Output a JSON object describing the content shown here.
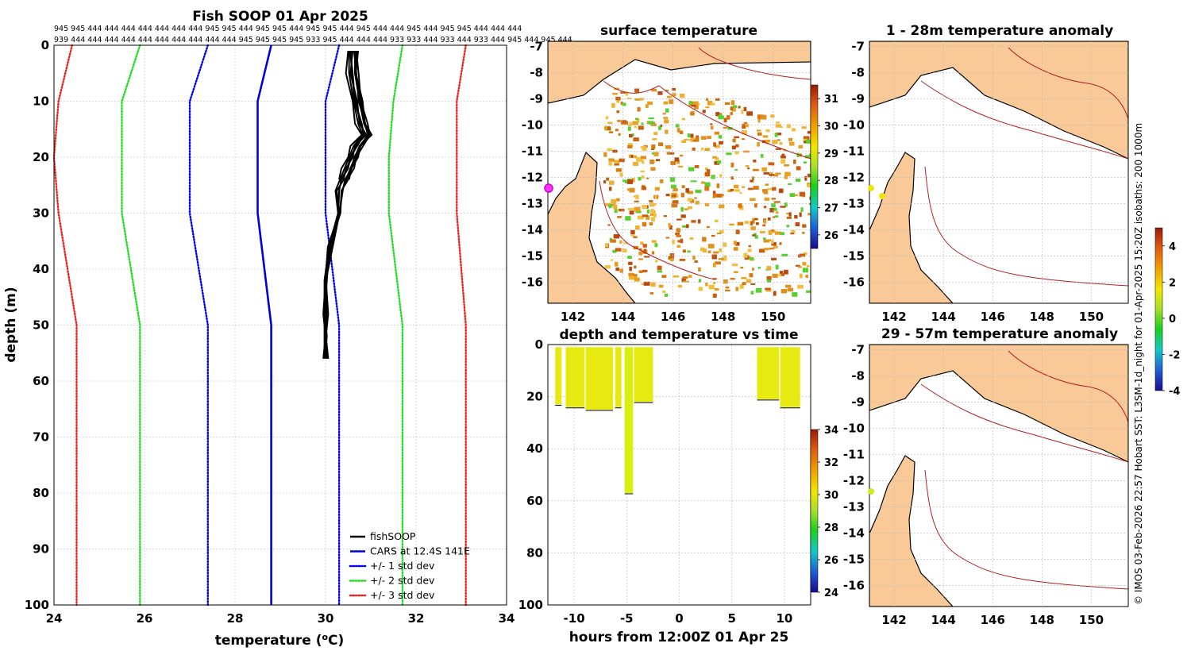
{
  "chart_data": [
    {
      "id": "profile",
      "type": "line",
      "title": "Fish SOOP 01 Apr 2025",
      "xlabel": "temperature (°C)",
      "ylabel": "depth (m)",
      "xlim": [
        24,
        34
      ],
      "ylim": [
        0,
        100
      ],
      "xticks": [
        "24",
        "26",
        "28",
        "30",
        "32",
        "34"
      ],
      "yticks": [
        "0",
        "10",
        "20",
        "30",
        "40",
        "50",
        "60",
        "70",
        "80",
        "90",
        "100"
      ],
      "depth_levels": [
        0,
        10,
        20,
        30,
        50,
        100
      ],
      "top_ids_row1": "945  945  444  444  444  444  444  444  444  945  945  444  945  945  444  945  945  444  945  444  444  945  444  945  945  444  444  444",
      "top_ids_row2": "939  444  444  444  444  444  444  444  444  444  444  945  945  945  945  933  945  444  444  444  933  933  444  933  444  933  444  945  444  945  444",
      "series": [
        {
          "name": "CARS at 12.4S 141E",
          "color": "#0000dd",
          "style": "solid",
          "values": [
            28.8,
            28.5,
            28.5,
            28.5,
            28.8,
            28.8
          ]
        },
        {
          "name": "-1 std",
          "color": "#0000ee",
          "style": "dotted",
          "values": [
            27.4,
            27.0,
            27.0,
            27.0,
            27.4,
            27.4
          ]
        },
        {
          "name": "+1 std",
          "color": "#0000ee",
          "style": "dotted",
          "values": [
            30.3,
            30.0,
            30.0,
            30.0,
            30.3,
            30.3
          ]
        },
        {
          "name": "-2 std",
          "color": "#22dd22",
          "style": "dotted",
          "values": [
            25.9,
            25.5,
            25.5,
            25.5,
            25.9,
            25.9
          ]
        },
        {
          "name": "+2 std",
          "color": "#22dd22",
          "style": "dotted",
          "values": [
            31.7,
            31.5,
            31.4,
            31.4,
            31.7,
            31.7
          ]
        },
        {
          "name": "-3 std",
          "color": "#ee2222",
          "style": "dotted",
          "values": [
            24.4,
            24.1,
            24.0,
            24.1,
            24.5,
            24.5
          ]
        },
        {
          "name": "+3 std",
          "color": "#ee2222",
          "style": "dotted",
          "values": [
            33.1,
            32.9,
            32.9,
            32.9,
            33.1,
            33.1
          ]
        }
      ],
      "fishSOOP_profile": {
        "depth": [
          1,
          5,
          10,
          14,
          16,
          18,
          20,
          22,
          24,
          26,
          30,
          36,
          42,
          48,
          52,
          56
        ],
        "temp": [
          30.6,
          30.6,
          30.7,
          30.8,
          30.9,
          30.7,
          30.6,
          30.5,
          30.4,
          30.3,
          30.3,
          30.1,
          30.0,
          30.0,
          30.0,
          30.0
        ]
      },
      "legend": [
        {
          "label": "fishSOOP",
          "color": "#000000",
          "style": "solid"
        },
        {
          "label": "CARS at 12.4S 141E",
          "color": "#0000dd",
          "style": "solid"
        },
        {
          "label": "+/- 1 std dev",
          "color": "#0000ee",
          "style": "dotted"
        },
        {
          "label": "+/- 2 std dev",
          "color": "#22dd22",
          "style": "dotted"
        },
        {
          "label": "+/- 3 std dev",
          "color": "#ee2222",
          "style": "dotted"
        }
      ]
    },
    {
      "id": "sst_map",
      "type": "heatmap",
      "title": "surface temperature",
      "lon_ticks": [
        "142",
        "144",
        "146",
        "148",
        "150"
      ],
      "lat_ticks": [
        "-7",
        "-8",
        "-9",
        "-10",
        "-11",
        "-12",
        "-13",
        "-14",
        "-15",
        "-16"
      ],
      "lon_range": [
        141,
        151.5
      ],
      "lat_range": [
        -16.8,
        -6.8
      ],
      "colorbar_ticks": [
        "31",
        "30",
        "29",
        "28",
        "27",
        "26"
      ],
      "colorbar_range": [
        25.5,
        31.5
      ]
    },
    {
      "id": "anom_map_1",
      "type": "heatmap",
      "title": "1 - 28m temperature anomaly",
      "lon_ticks": [
        "142",
        "144",
        "146",
        "148",
        "150"
      ],
      "lat_ticks": [
        "-7",
        "-8",
        "-9",
        "-10",
        "-11",
        "-12",
        "-13",
        "-14",
        "-15",
        "-16"
      ]
    },
    {
      "id": "anom_map_2",
      "type": "heatmap",
      "title": "29 - 57m temperature anomaly",
      "lon_ticks": [
        "142",
        "144",
        "146",
        "148",
        "150"
      ],
      "lat_ticks": [
        "-7",
        "-8",
        "-9",
        "-10",
        "-11",
        "-12",
        "-13",
        "-14",
        "-15",
        "-16"
      ]
    },
    {
      "id": "anom_colorbar",
      "type": "heatmap",
      "colorbar_ticks": [
        "4",
        "2",
        "0",
        "-2",
        "-4"
      ],
      "colorbar_range": [
        -4,
        5
      ]
    },
    {
      "id": "depth_time",
      "type": "scatter",
      "title": "depth and temperature vs time",
      "xlabel": "hours from 12:00Z 01 Apr 25",
      "xlim": [
        -12.5,
        12.5
      ],
      "ylim": [
        0,
        100
      ],
      "xticks": [
        "-10",
        "-5",
        "0",
        "5",
        "10"
      ],
      "yticks": [
        "0",
        "20",
        "40",
        "60",
        "80",
        "100"
      ],
      "colorbar_ticks": [
        "34",
        "32",
        "30",
        "28",
        "26",
        "24"
      ],
      "colorbar_range": [
        24,
        34
      ],
      "casts": [
        {
          "t_start": -11.8,
          "t_end": -11.2,
          "max_depth": 23
        },
        {
          "t_start": -10.8,
          "t_end": -9.0,
          "max_depth": 24
        },
        {
          "t_start": -8.9,
          "t_end": -6.3,
          "max_depth": 25
        },
        {
          "t_start": -6.1,
          "t_end": -5.5,
          "max_depth": 24
        },
        {
          "t_start": -5.2,
          "t_end": -4.4,
          "max_depth": 57
        },
        {
          "t_start": -4.3,
          "t_end": -2.5,
          "max_depth": 22
        },
        {
          "t_start": 7.4,
          "t_end": 9.5,
          "max_depth": 21
        },
        {
          "t_start": 9.6,
          "t_end": 11.5,
          "max_depth": 24
        }
      ]
    }
  ],
  "side_credit": "© IMOS 03-Feb-2026 22:57 Hobart SST: L3SM-1d_night for 01-Apr-2025 15:20Z isobaths: 200  1000m"
}
